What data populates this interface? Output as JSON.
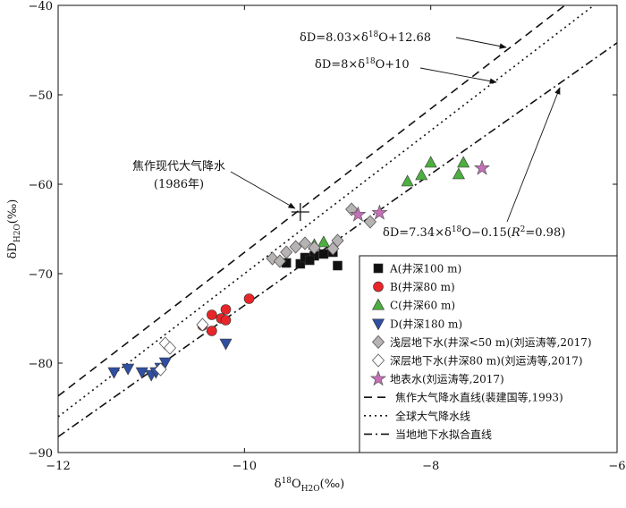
{
  "chart_data": {
    "type": "scatter",
    "xlabel": "δ18OH2O(‰)",
    "ylabel": "δDH2O(‰)",
    "xlim": [
      -12,
      -6
    ],
    "ylim": [
      -90,
      -40
    ],
    "x_ticks": [
      "−12",
      "−10",
      "−8",
      "−6"
    ],
    "y_ticks": [
      "−40",
      "−50",
      "−60",
      "−70",
      "−80",
      "−90"
    ],
    "colors": {
      "A": "#111111",
      "B": "#e8262a",
      "C": "#4caf3f",
      "D": "#2f4fa0",
      "shallow": "#b8b3b3",
      "deep": "#ffffff",
      "surface": "#c46fb6"
    },
    "series": [
      {
        "key": "A",
        "name": "A(井深100 m)",
        "marker": "square",
        "color": "#111111",
        "points": [
          [
            -9.55,
            -68.8
          ],
          [
            -9.4,
            -68.9
          ],
          [
            -9.35,
            -68.2
          ],
          [
            -9.25,
            -68.0
          ],
          [
            -9.15,
            -67.8
          ],
          [
            -9.05,
            -67.6
          ],
          [
            -9.0,
            -69.1
          ],
          [
            -9.3,
            -68.5
          ]
        ]
      },
      {
        "key": "B",
        "name": "B(井深80 m)",
        "marker": "circle",
        "color": "#e8262a",
        "points": [
          [
            -10.45,
            -75.8
          ],
          [
            -10.35,
            -76.4
          ],
          [
            -10.35,
            -74.6
          ],
          [
            -10.25,
            -75.0
          ],
          [
            -10.2,
            -74.0
          ],
          [
            -9.95,
            -72.8
          ],
          [
            -10.2,
            -75.2
          ]
        ]
      },
      {
        "key": "C",
        "name": "C(井深60 m)",
        "marker": "triangle-up",
        "color": "#4caf3f",
        "points": [
          [
            -9.25,
            -66.8
          ],
          [
            -9.15,
            -66.5
          ],
          [
            -8.25,
            -59.7
          ],
          [
            -8.1,
            -59.0
          ],
          [
            -8.0,
            -57.6
          ],
          [
            -7.7,
            -58.9
          ],
          [
            -7.65,
            -57.6
          ]
        ]
      },
      {
        "key": "D",
        "name": "D(井深180 m)",
        "marker": "triangle-down",
        "color": "#2f4fa0",
        "points": [
          [
            -11.4,
            -81.0
          ],
          [
            -11.25,
            -80.6
          ],
          [
            -11.1,
            -81.0
          ],
          [
            -11.0,
            -81.3
          ],
          [
            -10.95,
            -81.0
          ],
          [
            -10.9,
            -80.5
          ],
          [
            -10.85,
            -79.9
          ],
          [
            -10.2,
            -77.8
          ]
        ]
      },
      {
        "key": "shallow",
        "name": "浅层地下水(井深<50 m)(刘运涛等,2017)",
        "marker": "diamond",
        "color": "#b8b3b3",
        "points": [
          [
            -9.7,
            -68.3
          ],
          [
            -9.62,
            -68.6
          ],
          [
            -9.55,
            -67.6
          ],
          [
            -9.45,
            -67.0
          ],
          [
            -9.35,
            -66.6
          ],
          [
            -9.25,
            -67.1
          ],
          [
            -9.05,
            -67.2
          ],
          [
            -9.0,
            -66.3
          ],
          [
            -8.85,
            -62.8
          ],
          [
            -8.65,
            -64.2
          ]
        ]
      },
      {
        "key": "deep",
        "name": "深层地下水(井深80 m)(刘运涛等,2017)",
        "marker": "diamond",
        "color": "#ffffff",
        "points": [
          [
            -10.85,
            -77.8
          ],
          [
            -10.8,
            -78.3
          ],
          [
            -10.9,
            -80.7
          ],
          [
            -10.45,
            -75.7
          ]
        ]
      },
      {
        "key": "surface",
        "name": "地表水(刘运涛等,2017)",
        "marker": "star",
        "color": "#c46fb6",
        "points": [
          [
            -8.78,
            -63.4
          ],
          [
            -8.55,
            -63.2
          ],
          [
            -7.45,
            -58.2
          ]
        ]
      }
    ],
    "lines": [
      {
        "name": "焦作大气降水直线(裴建国等,1993)",
        "style": "dashed",
        "slope": 8.03,
        "intercept": 12.68,
        "equation": "δD=8.03×δ18O+12.68"
      },
      {
        "name": "全球大气降水线",
        "style": "dotted",
        "slope": 8,
        "intercept": 10,
        "equation": "δD=8×δ18O+10"
      },
      {
        "name": "当地地下水拟合直线",
        "style": "dashdot",
        "slope": 7.34,
        "intercept": -0.15,
        "equation": "δD=7.34×δ18O−0.15(R2=0.98)"
      }
    ],
    "reference_point": {
      "label_line1": "焦作现代大气降水",
      "label_line2": "(1986年)",
      "x": -9.4,
      "y": -63.1,
      "marker": "plus"
    },
    "legend": {
      "position": "bottom-right"
    }
  }
}
